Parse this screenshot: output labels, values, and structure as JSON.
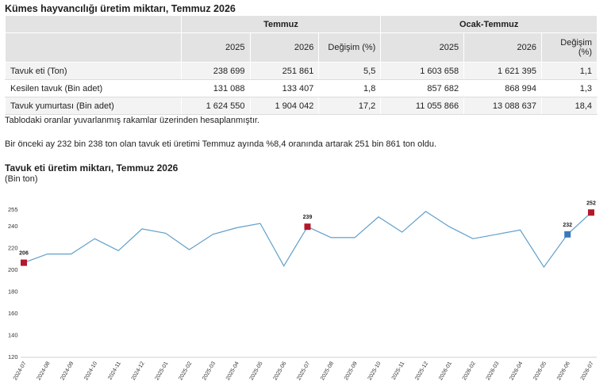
{
  "title": "Kümes hayvancılığı üretim miktarı, Temmuz 2026",
  "table": {
    "groups": [
      "Temmuz",
      "Ocak-Temmuz"
    ],
    "subheaders": [
      "2025",
      "2026",
      "Değişim (%)",
      "2025",
      "2026",
      "Değişim (%)"
    ],
    "rows": [
      {
        "label": "Tavuk eti (Ton)",
        "cells": [
          "238 699",
          "251 861",
          "5,5",
          "1 603 658",
          "1 621 395",
          "1,1"
        ]
      },
      {
        "label": "Kesilen tavuk (Bin adet)",
        "cells": [
          "131 088",
          "133 407",
          "1,8",
          "857 682",
          "868 994",
          "1,3"
        ]
      },
      {
        "label": "Tavuk yumurtası (Bin adet)",
        "cells": [
          "1 624 550",
          "1 904 042",
          "17,2",
          "11 055 866",
          "13 088 637",
          "18,4"
        ]
      }
    ]
  },
  "note": "Tablodaki oranlar yuvarlanmış rakamlar üzerinden hesaplanmıştır.",
  "paragraph": "Bir önceki ay 232 bin 238 ton olan tavuk eti üretimi Temmuz ayında %8,4 oranında artarak 251 bin 861 ton oldu.",
  "chart_data": {
    "type": "line",
    "title": "Tavuk eti üretim miktarı, Temmuz 2026",
    "ylabel": "(Bin ton)",
    "ylim": [
      120,
      258
    ],
    "yticks": [
      120,
      140,
      160,
      180,
      200,
      220,
      240,
      255
    ],
    "grid": false,
    "x": [
      "2024-07",
      "2024-08",
      "2024-09",
      "2024-10",
      "2024-11",
      "2024-12",
      "2025-01",
      "2025-02",
      "2025-03",
      "2025-04",
      "2025-05",
      "2025-06",
      "2025-07",
      "2025-08",
      "2025-09",
      "2025-10",
      "2025-11",
      "2025-12",
      "2026-01",
      "2026-02",
      "2026-03",
      "2026-04",
      "2026-05",
      "2026-06",
      "2026-07"
    ],
    "series": [
      {
        "values": [
          206,
          214,
          214,
          228,
          217,
          237,
          233,
          218,
          232,
          238,
          242,
          203,
          239,
          229,
          229,
          248,
          234,
          253,
          239,
          228,
          232,
          236,
          202,
          232,
          252
        ]
      }
    ],
    "highlights": [
      {
        "x": "2024-07",
        "label": "206",
        "color": "#b2182b"
      },
      {
        "x": "2025-07",
        "label": "239",
        "color": "#b2182b"
      },
      {
        "x": "2026-06",
        "label": "232",
        "color": "#3a7ab8"
      },
      {
        "x": "2026-07",
        "label": "252",
        "color": "#b2182b"
      }
    ],
    "line_color": "#5f9fc9"
  }
}
